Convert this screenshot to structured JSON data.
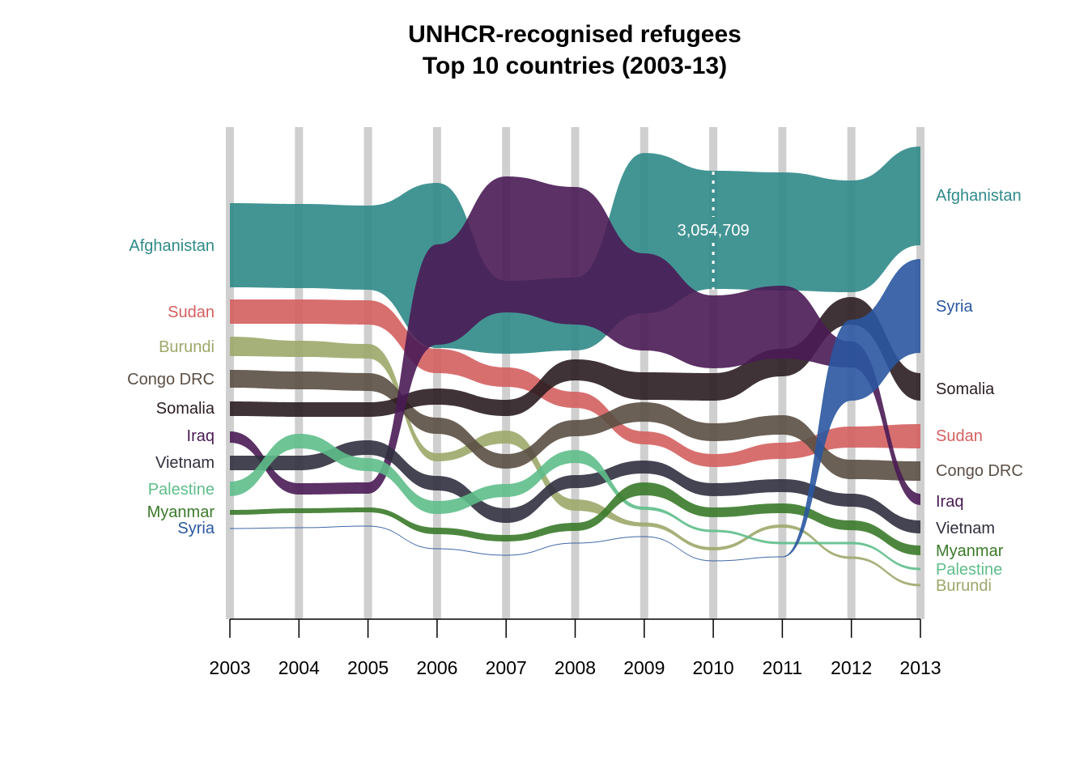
{
  "chart_data": {
    "type": "area",
    "subtype": "bump-stream",
    "title_lines": [
      "UNHCR-recognised refugees",
      "Top 10 countries (2003-13)"
    ],
    "x": [
      "2003",
      "2004",
      "2005",
      "2006",
      "2007",
      "2008",
      "2009",
      "2010",
      "2011",
      "2012",
      "2013"
    ],
    "annotation": {
      "year": "2010",
      "series": "Afghanistan",
      "text": "3,054,709"
    },
    "grid": false,
    "legend": "direct labels at both ends (left: 2003 order, right: 2013 order)",
    "series": [
      {
        "name": "Afghanistan",
        "color": "#2f8a88",
        "label_left": "Afghanistan",
        "label_right": "Afghanistan",
        "center": [
          303,
          304,
          306,
          328,
          392,
          388,
          288,
          284,
          286,
          292,
          242
        ],
        "thickness": [
          104,
          104,
          104,
          204,
          90,
          90,
          198,
          146,
          146,
          138,
          122
        ]
      },
      {
        "name": "Sudan",
        "color": "#d45f5f",
        "label_left": "Sudan",
        "label_right": "Sudan",
        "center": [
          385,
          385,
          386,
          446,
          466,
          494,
          541,
          569,
          557,
          540,
          539
        ],
        "thickness": [
          30,
          30,
          30,
          30,
          24,
          20,
          16,
          16,
          20,
          26,
          30
        ]
      },
      {
        "name": "Burundi",
        "color": "#9ca86a",
        "label_left": "Burundi",
        "label_right": "Burundi",
        "center": [
          428,
          431,
          434,
          565,
          540,
          624,
          648,
          678,
          650,
          689,
          723
        ],
        "thickness": [
          24,
          20,
          18,
          10,
          16,
          14,
          5,
          4,
          4,
          3,
          3
        ]
      },
      {
        "name": "Congo DRC",
        "color": "#5b4f44",
        "label_left": "Congo DRC",
        "label_right": "Congo DRC",
        "center": [
          468,
          470,
          472,
          526,
          570,
          529,
          509,
          534,
          525,
          580,
          582
        ],
        "thickness": [
          22,
          22,
          22,
          20,
          18,
          20,
          24,
          22,
          24,
          24,
          24
        ]
      },
      {
        "name": "Somalia",
        "color": "#2b1d21",
        "label_left": "Somalia",
        "label_right": "Somalia",
        "center": [
          505,
          506,
          506,
          490,
          504,
          457,
          477,
          478,
          448,
          384,
          478
        ]
      },
      {
        "name": "Iraq",
        "color": "#4a1b55",
        "label_left": "Iraq",
        "label_right": "Iraq",
        "center": [
          540,
          604,
          603,
          364,
          302,
          316,
          373,
          410,
          398,
          438,
          617
        ],
        "thickness": [
          14,
          14,
          14,
          124,
          168,
          170,
          120,
          90,
          90,
          32,
          14
        ]
      },
      {
        "name": "Vietnam",
        "color": "#30303f",
        "label_left": "Vietnam",
        "label_right": "Vietnam",
        "center": [
          572,
          572,
          553,
          597,
          637,
          595,
          577,
          605,
          600,
          618,
          651
        ],
        "thickness": [
          18,
          18,
          18,
          18,
          18,
          16,
          16,
          16,
          16,
          16,
          16
        ]
      },
      {
        "name": "Palestine",
        "color": "#5ebe8a",
        "label_left": "Palestine",
        "label_right": "Palestine",
        "center": [
          604,
          545,
          574,
          627,
          606,
          564,
          628,
          656,
          671,
          671,
          703
        ],
        "thickness": [
          18,
          18,
          16,
          16,
          16,
          16,
          4,
          3,
          3,
          3,
          3
        ]
      },
      {
        "name": "Myanmar",
        "color": "#3a7a2a",
        "label_left": "Myanmar",
        "label_right": "Myanmar",
        "center": [
          633,
          631,
          630,
          656,
          665,
          651,
          604,
          633,
          628,
          649,
          680
        ],
        "thickness": [
          6,
          6,
          6,
          8,
          8,
          10,
          16,
          12,
          12,
          12,
          12
        ]
      },
      {
        "name": "Syria",
        "color": "#2a57a0",
        "label_left": "Syria",
        "label_right": "Syria",
        "center": [
          653,
          652,
          650,
          678,
          686,
          671,
          663,
          693,
          688,
          445,
          378
        ],
        "thickness": [
          1,
          1,
          1,
          1,
          1,
          1,
          1,
          1,
          1,
          100,
          116
        ]
      }
    ]
  }
}
